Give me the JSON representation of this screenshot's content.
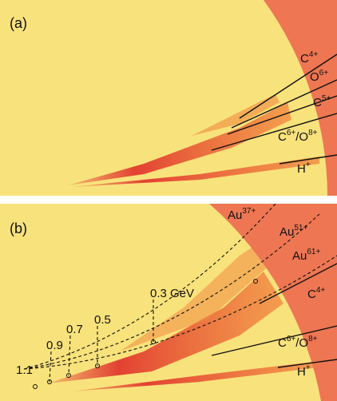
{
  "panels": [
    {
      "label": "(a)",
      "ions": [
        {
          "base": "C",
          "sup": "4+"
        },
        {
          "base": "O",
          "sup": "6+"
        },
        {
          "base": "C",
          "sup": "5+"
        },
        {
          "base": "C",
          "sup": "6+",
          "sep": "/O",
          "sup2": "8+"
        },
        {
          "base": "H",
          "sup": "+"
        }
      ]
    },
    {
      "label": "(b)",
      "ions": [
        {
          "base": "Au",
          "sup": "37+"
        },
        {
          "base": "Au",
          "sup": "51+"
        },
        {
          "base": "Au",
          "sup": "61+"
        },
        {
          "base": "C",
          "sup": "4+"
        },
        {
          "base": "C",
          "sup": "6+",
          "sep": "/O",
          "sup2": "8+"
        },
        {
          "base": "H",
          "sup": "+"
        }
      ],
      "energies": [
        "0.3 GeV",
        "0.5",
        "0.7",
        "0.9",
        "1.1"
      ]
    }
  ]
}
